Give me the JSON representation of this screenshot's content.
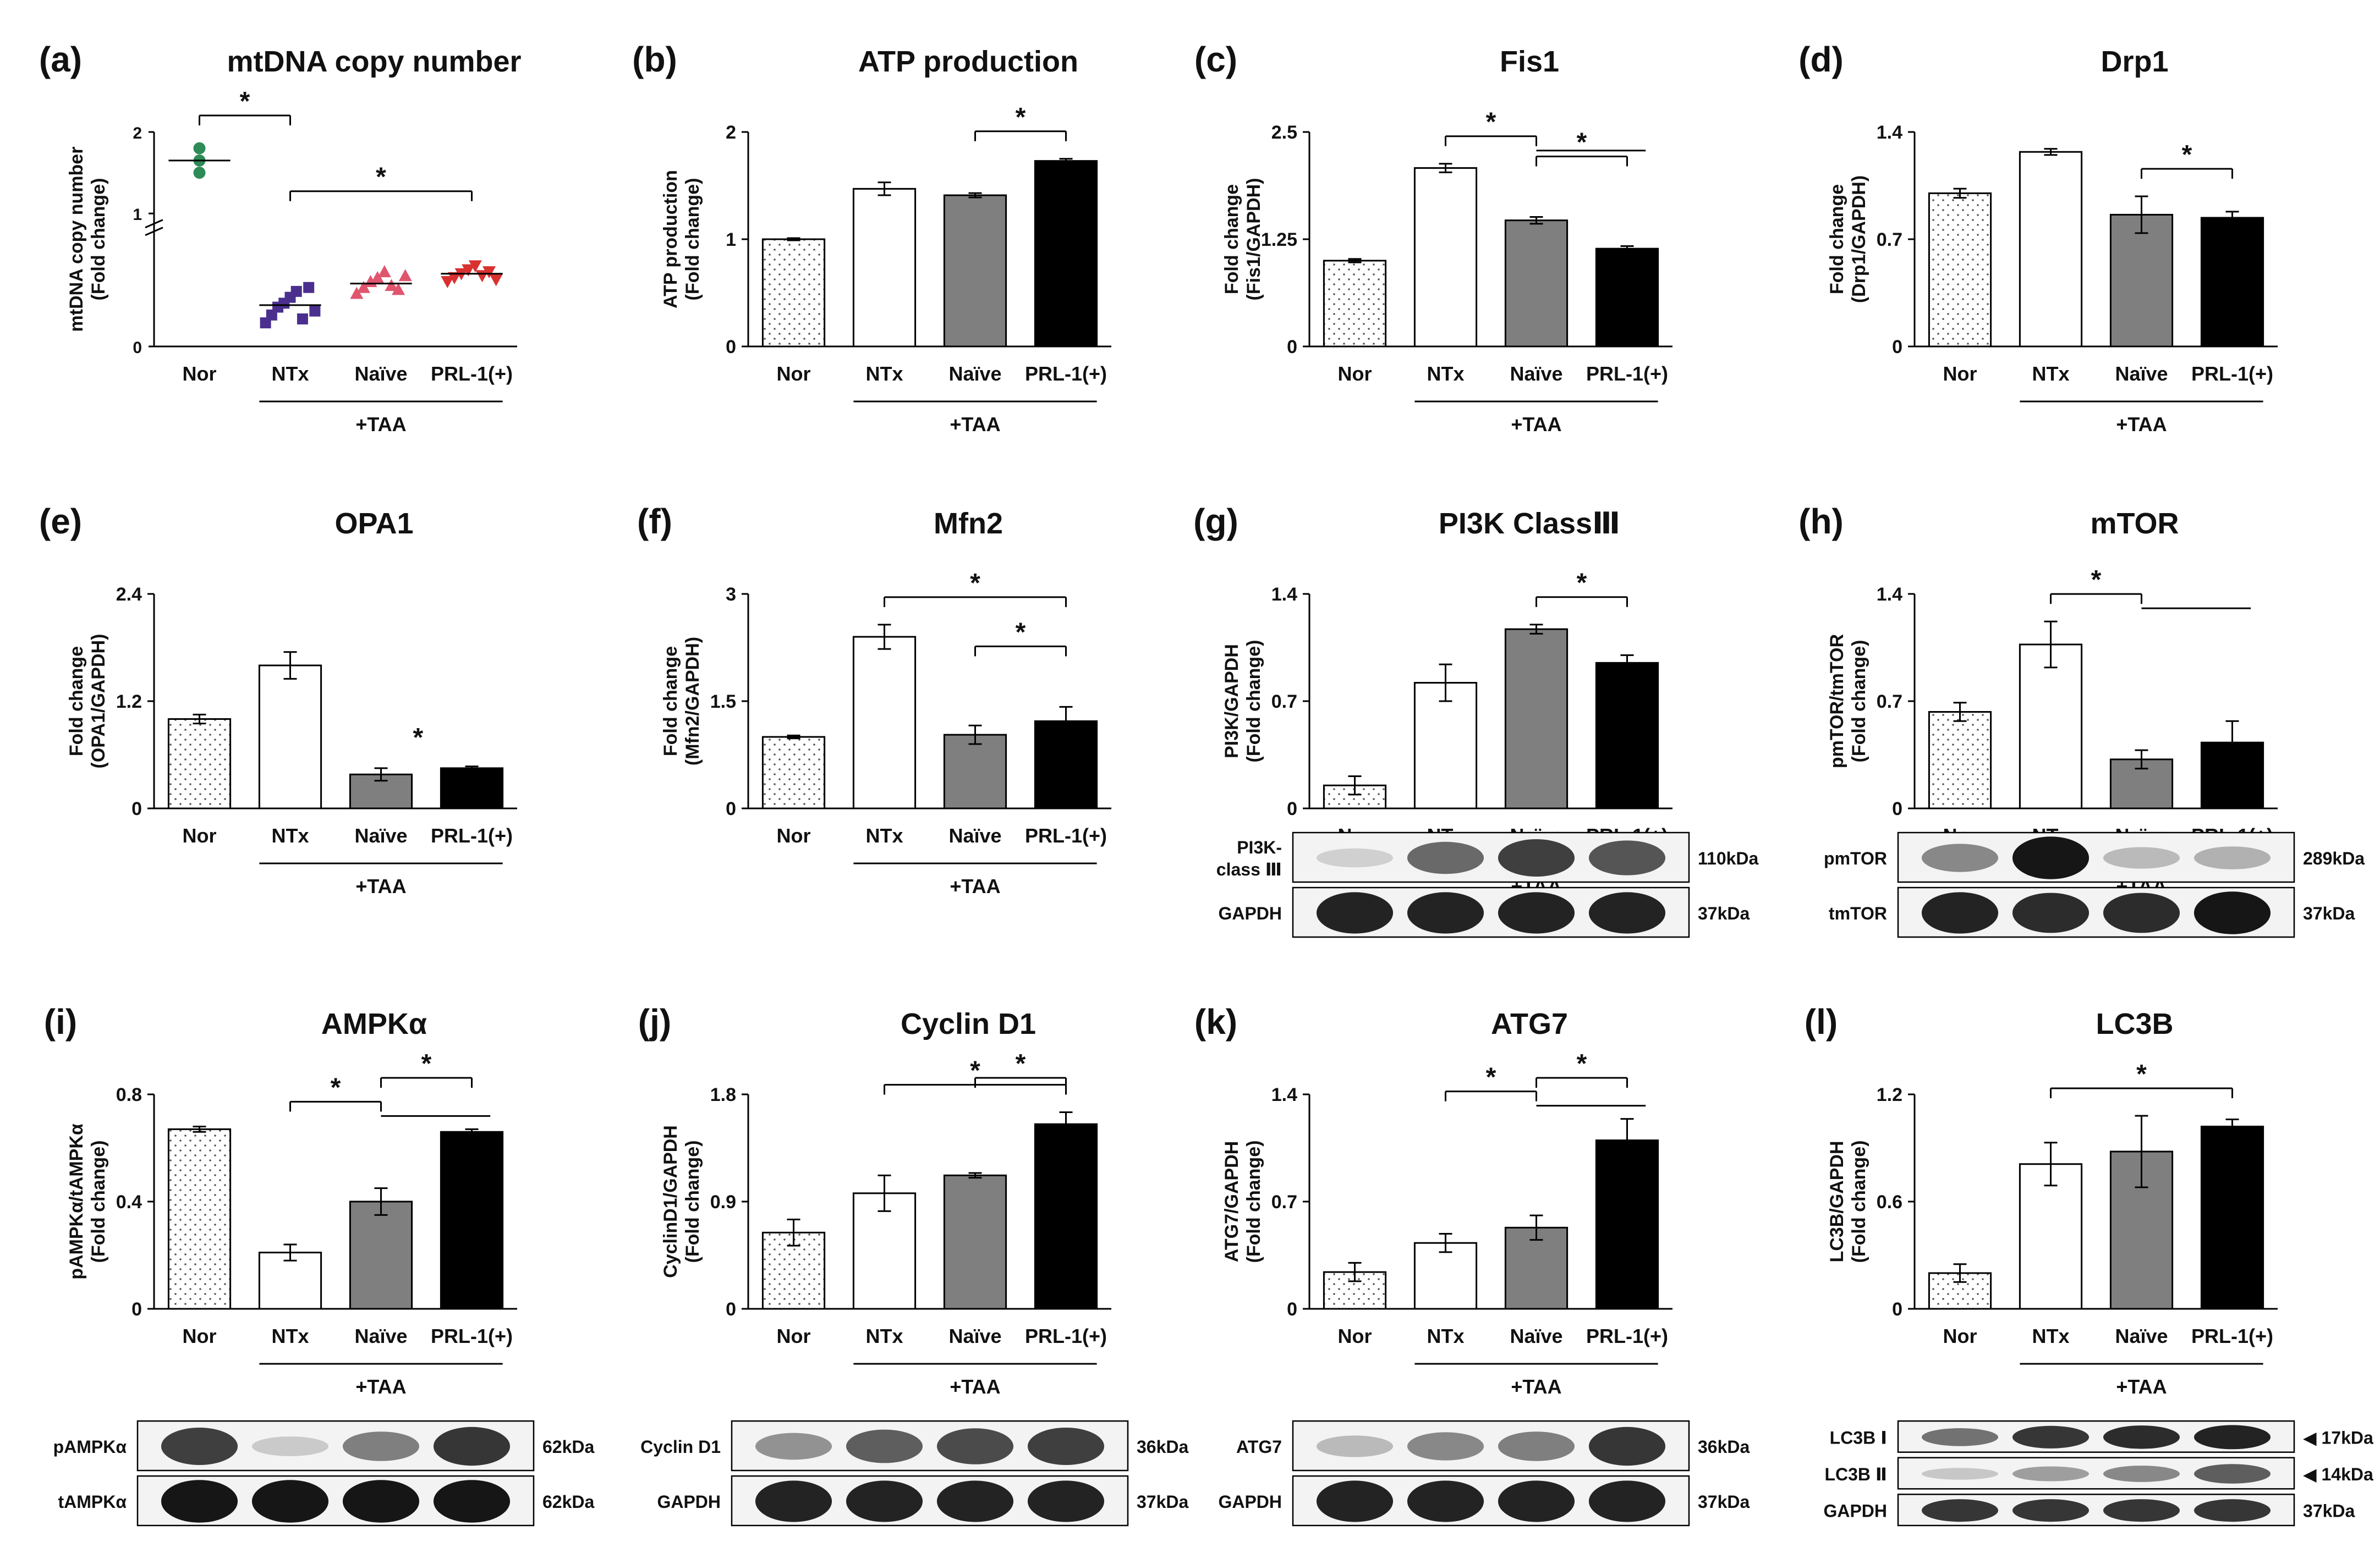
{
  "figure": {
    "common": {
      "groups": [
        "Nor",
        "NTx",
        "Naïve",
        "PRL-1(+)"
      ],
      "treatment_label": "+TAA",
      "significance_marker": "*",
      "colors": {
        "nor": "#ffffff",
        "ntx": "#ffffff",
        "naive": "#7f7f7f",
        "prl1": "#000000",
        "axis": "#000000"
      }
    }
  },
  "chart_data": [
    {
      "id": "a",
      "panel_label": "(a)",
      "title": "mtDNA copy number",
      "type": "scatter",
      "ylabel": [
        "mtDNA copy number",
        "(Fold change)"
      ],
      "categories": [
        "Nor",
        "NTx",
        "Naïve",
        "PRL-1(+)"
      ],
      "yticks": [
        "0",
        "1",
        "2"
      ],
      "axis_break": true,
      "means": [
        1.65,
        0.21,
        0.32,
        0.37
      ],
      "points": [
        [
          1.5,
          1.65,
          1.8
        ],
        [
          0.12,
          0.16,
          0.2,
          0.22,
          0.25,
          0.28,
          0.14,
          0.3,
          0.18
        ],
        [
          0.27,
          0.3,
          0.33,
          0.35,
          0.38,
          0.31,
          0.29,
          0.36
        ],
        [
          0.33,
          0.35,
          0.37,
          0.39,
          0.41,
          0.36,
          0.38,
          0.34
        ]
      ],
      "point_colors": [
        "#2e8b57",
        "#4b2f8f",
        "#e0556e",
        "#d93030"
      ],
      "significance": [
        {
          "from": 0,
          "to": 1,
          "label": "*"
        },
        {
          "from": 1,
          "to": 3,
          "label": "*"
        }
      ]
    },
    {
      "id": "b",
      "panel_label": "(b)",
      "title": "ATP production",
      "type": "bar",
      "ylabel": [
        "ATP production",
        "(Fold change)"
      ],
      "categories": [
        "Nor",
        "NTx",
        "Naïve",
        "PRL-1(+)"
      ],
      "values": [
        1.0,
        1.47,
        1.41,
        1.73
      ],
      "errors": [
        0.01,
        0.06,
        0.02,
        0.02
      ],
      "ylim": [
        0,
        2
      ],
      "yticks": [
        0,
        1,
        2
      ],
      "significance": [
        {
          "from": 2,
          "to": 3,
          "label": "*"
        }
      ]
    },
    {
      "id": "c",
      "panel_label": "(c)",
      "title": "Fis1",
      "type": "bar",
      "ylabel": [
        "Fold change",
        "(Fis1/GAPDH)"
      ],
      "categories": [
        "Nor",
        "NTx",
        "Naïve",
        "PRL-1(+)"
      ],
      "values": [
        1.0,
        2.08,
        1.47,
        1.14
      ],
      "errors": [
        0.02,
        0.05,
        0.04,
        0.03
      ],
      "ylim": [
        0,
        2.5
      ],
      "yticks": [
        0,
        1.25,
        2.5
      ],
      "significance": [
        {
          "from": 1,
          "to": 2,
          "to2": 3,
          "label": "*"
        },
        {
          "from": 2,
          "to": 3,
          "label": "*"
        }
      ]
    },
    {
      "id": "d",
      "panel_label": "(d)",
      "title": "Drp1",
      "type": "bar",
      "ylabel": [
        "Fold change",
        "(Drp1/GAPDH)"
      ],
      "categories": [
        "Nor",
        "NTx",
        "Naïve",
        "PRL-1(+)"
      ],
      "values": [
        1.0,
        1.27,
        0.86,
        0.84
      ],
      "errors": [
        0.03,
        0.02,
        0.12,
        0.04
      ],
      "ylim": [
        0,
        1.4
      ],
      "yticks": [
        0,
        0.7,
        1.4
      ],
      "significance": [
        {
          "from": 2,
          "to": 3,
          "label": "*"
        }
      ]
    },
    {
      "id": "e",
      "panel_label": "(e)",
      "title": "OPA1",
      "type": "bar",
      "ylabel": [
        "Fold change",
        "(OPA1/GAPDH)"
      ],
      "categories": [
        "Nor",
        "NTx",
        "Naïve",
        "PRL-1(+)"
      ],
      "values": [
        1.0,
        1.6,
        0.38,
        0.45
      ],
      "errors": [
        0.05,
        0.15,
        0.07,
        0.02
      ],
      "ylim": [
        0,
        2.4
      ],
      "yticks": [
        0,
        1.2,
        2.4
      ],
      "significance": [
        {
          "over": 2,
          "label": "*"
        }
      ]
    },
    {
      "id": "f",
      "panel_label": "(f)",
      "title": "Mfn2",
      "type": "bar",
      "ylabel": [
        "Fold change",
        "(Mfn2/GAPDH)"
      ],
      "categories": [
        "Nor",
        "NTx",
        "Naïve",
        "PRL-1(+)"
      ],
      "values": [
        1.0,
        2.4,
        1.03,
        1.22
      ],
      "errors": [
        0.02,
        0.17,
        0.13,
        0.2
      ],
      "ylim": [
        0,
        3
      ],
      "yticks": [
        0,
        1.5,
        3
      ],
      "significance": [
        {
          "from": 1,
          "to": 3,
          "label": "*"
        },
        {
          "from": 2,
          "to": 3,
          "label": "*"
        }
      ]
    },
    {
      "id": "g",
      "panel_label": "(g)",
      "title": "PI3K ClassⅢ",
      "type": "bar",
      "ylabel": [
        "PI3K/GAPDH",
        "(Fold change)"
      ],
      "categories": [
        "Nor",
        "NTx",
        "Naïve",
        "PRL-1(+)"
      ],
      "values": [
        0.15,
        0.82,
        1.17,
        0.95
      ],
      "errors": [
        0.06,
        0.12,
        0.03,
        0.05
      ],
      "ylim": [
        0,
        1.4
      ],
      "yticks": [
        0,
        0.7,
        1.4
      ],
      "significance": [
        {
          "from": 2,
          "to": 3,
          "label": "*"
        }
      ],
      "blot": {
        "rows": [
          {
            "label": [
              "PI3K-",
              "class Ⅲ"
            ],
            "kda": "110kDa",
            "bands": [
              0.05,
              0.55,
              0.75,
              0.65
            ]
          },
          {
            "label": [
              "GAPDH"
            ],
            "kda": "37kDa",
            "bands": [
              0.9,
              0.9,
              0.9,
              0.9
            ]
          }
        ]
      }
    },
    {
      "id": "h",
      "panel_label": "(h)",
      "title": "mTOR",
      "type": "bar",
      "ylabel": [
        "pmTOR/tmTOR",
        "(Fold change)"
      ],
      "categories": [
        "Nor",
        "NTx",
        "Naïve",
        "PRL-1(+)"
      ],
      "values": [
        0.63,
        1.07,
        0.32,
        0.43
      ],
      "errors": [
        0.06,
        0.15,
        0.06,
        0.14
      ],
      "ylim": [
        0,
        1.4
      ],
      "yticks": [
        0,
        0.7,
        1.4
      ],
      "significance": [
        {
          "from": 1,
          "to": 2,
          "to2": 3,
          "label": "*"
        }
      ],
      "blot": {
        "rows": [
          {
            "label": [
              "pmTOR"
            ],
            "kda": "289kDa",
            "bands": [
              0.4,
              0.95,
              0.15,
              0.2
            ]
          },
          {
            "label": [
              "tmTOR"
            ],
            "kda": "37kDa",
            "bands": [
              0.9,
              0.85,
              0.85,
              0.95
            ]
          }
        ]
      }
    },
    {
      "id": "i",
      "panel_label": "(i)",
      "title": "AMPKα",
      "type": "bar",
      "ylabel": [
        "pAMPKα/tAMPKα",
        "(Fold change)"
      ],
      "categories": [
        "Nor",
        "NTx",
        "Naïve",
        "PRL-1(+)"
      ],
      "values": [
        0.67,
        0.21,
        0.4,
        0.66
      ],
      "errors": [
        0.01,
        0.03,
        0.05,
        0.01
      ],
      "ylim": [
        0,
        0.8
      ],
      "yticks": [
        0,
        0.4,
        0.8
      ],
      "significance": [
        {
          "from": 1,
          "to": 2,
          "to2": 3,
          "label": "*"
        },
        {
          "from": 2,
          "to": 3,
          "label": "*"
        }
      ],
      "blot": {
        "rows": [
          {
            "label": [
              "pAMPKα"
            ],
            "kda": "62kDa",
            "bands": [
              0.75,
              0.08,
              0.45,
              0.8
            ]
          },
          {
            "label": [
              "tAMPKα"
            ],
            "kda": "62kDa",
            "bands": [
              0.95,
              0.95,
              0.95,
              0.95
            ]
          }
        ]
      }
    },
    {
      "id": "j",
      "panel_label": "(j)",
      "title": "Cyclin D1",
      "type": "bar",
      "ylabel": [
        "CyclinD1/GAPDH",
        "(Fold change)"
      ],
      "categories": [
        "Nor",
        "NTx",
        "Naïve",
        "PRL-1(+)"
      ],
      "values": [
        0.64,
        0.97,
        1.12,
        1.55
      ],
      "errors": [
        0.11,
        0.15,
        0.02,
        0.1
      ],
      "ylim": [
        0,
        1.8
      ],
      "yticks": [
        0,
        0.9,
        1.8
      ],
      "significance": [
        {
          "from": 1,
          "to": 3,
          "label": "*"
        },
        {
          "from": 2,
          "to": 3,
          "label": "*"
        }
      ],
      "blot": {
        "rows": [
          {
            "label": [
              "Cyclin D1"
            ],
            "kda": "36kDa",
            "bands": [
              0.35,
              0.6,
              0.7,
              0.75
            ]
          },
          {
            "label": [
              "GAPDH"
            ],
            "kda": "37kDa",
            "bands": [
              0.9,
              0.9,
              0.9,
              0.9
            ]
          }
        ]
      }
    },
    {
      "id": "k",
      "panel_label": "(k)",
      "title": "ATG7",
      "type": "bar",
      "ylabel": [
        "ATG7/GAPDH",
        "(Fold change)"
      ],
      "categories": [
        "Nor",
        "NTx",
        "Naïve",
        "PRL-1(+)"
      ],
      "values": [
        0.24,
        0.43,
        0.53,
        1.1
      ],
      "errors": [
        0.06,
        0.06,
        0.08,
        0.14
      ],
      "ylim": [
        0,
        1.4
      ],
      "yticks": [
        0,
        0.7,
        1.4
      ],
      "significance": [
        {
          "from": 1,
          "to": 2,
          "to2": 3,
          "label": "*"
        },
        {
          "from": 2,
          "to": 3,
          "label": "*"
        }
      ],
      "blot": {
        "rows": [
          {
            "label": [
              "ATG7"
            ],
            "kda": "36kDa",
            "bands": [
              0.15,
              0.4,
              0.45,
              0.8
            ]
          },
          {
            "label": [
              "GAPDH"
            ],
            "kda": "37kDa",
            "bands": [
              0.9,
              0.9,
              0.9,
              0.9
            ]
          }
        ]
      }
    },
    {
      "id": "l",
      "panel_label": "(l)",
      "title": "LC3B",
      "type": "bar",
      "ylabel": [
        "LC3B/GAPDH",
        "(Fold change)"
      ],
      "categories": [
        "Nor",
        "NTx",
        "Naïve",
        "PRL-1(+)"
      ],
      "values": [
        0.2,
        0.81,
        0.88,
        1.02
      ],
      "errors": [
        0.05,
        0.12,
        0.2,
        0.04
      ],
      "ylim": [
        0,
        1.2
      ],
      "yticks": [
        0,
        0.6,
        1.2
      ],
      "significance": [
        {
          "from": 1,
          "to": 3,
          "label": "*"
        }
      ],
      "blot": {
        "rows": [
          {
            "label": [
              "LC3B Ⅰ"
            ],
            "kda": "◀ 17kDa",
            "bands": [
              0.5,
              0.8,
              0.85,
              0.9
            ]
          },
          {
            "label": [
              "LC3B Ⅱ"
            ],
            "kda": "◀ 14kDa",
            "bands": [
              0.1,
              0.3,
              0.4,
              0.6
            ]
          },
          {
            "label": [
              "GAPDH"
            ],
            "kda": "37kDa",
            "bands": [
              0.8,
              0.8,
              0.8,
              0.8
            ]
          }
        ]
      }
    }
  ]
}
